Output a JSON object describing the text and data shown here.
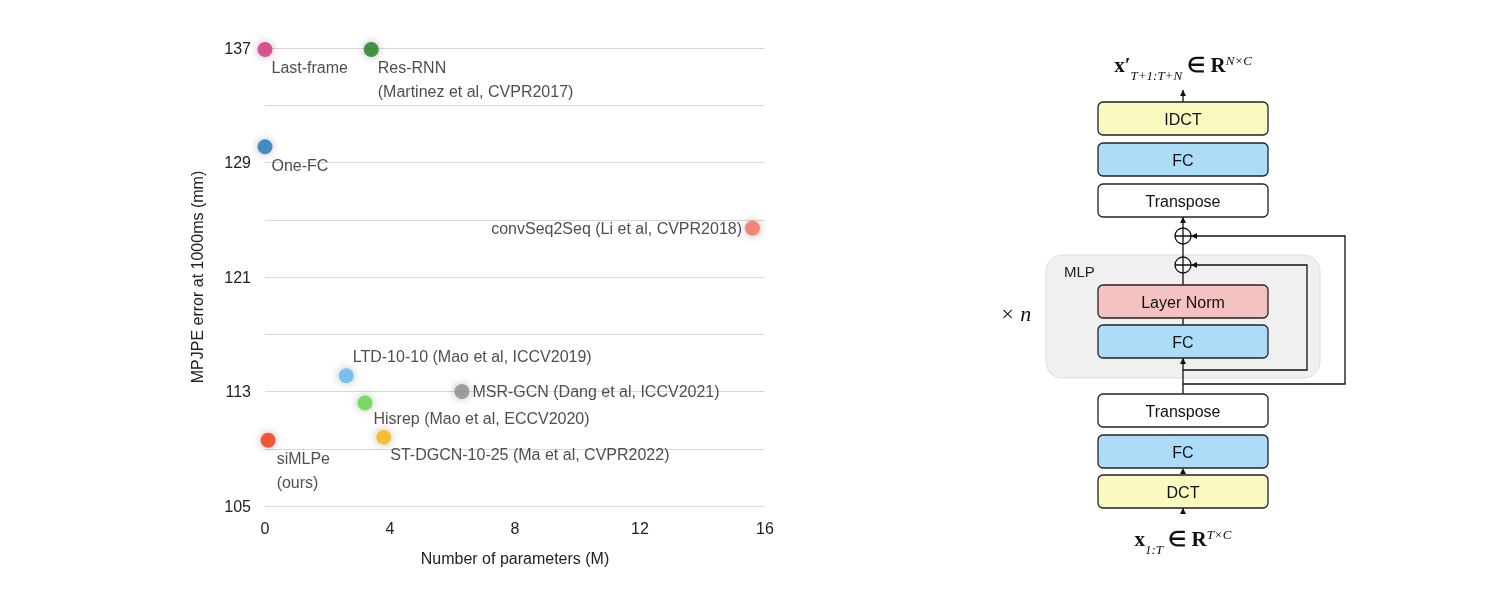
{
  "chart_data": [
    {
      "type": "scatter",
      "xlabel": "Number of parameters (M)",
      "ylabel": "MPJPE error at 1000ms (mm)",
      "xlim": [
        0,
        16
      ],
      "xticks": [
        0,
        4,
        8,
        12,
        16
      ],
      "ylim": [
        105,
        137
      ],
      "yticks": [
        105,
        {
          "value": 109,
          "label": null
        },
        113,
        {
          "value": 117,
          "label": null
        },
        121,
        {
          "value": 125,
          "label": null
        },
        129,
        {
          "value": 133,
          "label": null
        },
        137
      ],
      "grid": "y",
      "legend": false,
      "marker": "circle",
      "series": [
        {
          "name": "Last-frame",
          "color": "#d62f84",
          "x": [
            0
          ],
          "values": [
            136.9
          ]
        },
        {
          "name": "Res-RNN\n(Martinez et al, CVPR2017)",
          "color": "#1e7d1e",
          "x": [
            3.4
          ],
          "values": [
            136.9
          ]
        },
        {
          "name": "One-FC",
          "color": "#1f78b8",
          "x": [
            0
          ],
          "values": [
            130.1
          ]
        },
        {
          "name": "convSeq2Seq (Li et al, CVPR2018)",
          "color": "#f4705c",
          "x": [
            15.6
          ],
          "values": [
            124.4
          ]
        },
        {
          "name": "LTD-10-10 (Mao et al, ICCV2019)",
          "color": "#5cb8f2",
          "x": [
            2.6
          ],
          "values": [
            114.1
          ]
        },
        {
          "name": "MSR-GCN (Dang et al, ICCV2021)",
          "color": "#8c8c8c",
          "x": [
            6.3
          ],
          "values": [
            113.0
          ]
        },
        {
          "name": "Hisrep (Mao et al, ECCV2020)",
          "color": "#5fd64a",
          "x": [
            3.2
          ],
          "values": [
            112.2
          ]
        },
        {
          "name": "ST-DGCN-10-25 (Ma et al, CVPR2022)",
          "color": "#f6b80a",
          "x": [
            3.8
          ],
          "values": [
            109.8
          ]
        },
        {
          "name": "siMLPe\n(ours)",
          "color": "#f2320f",
          "x": [
            0.1
          ],
          "values": [
            109.6
          ]
        }
      ]
    },
    {
      "type": "other",
      "annotations": [
        "x′$_{T+1:T+N}$ ∈ R$^{N×C}$",
        "IDCT",
        "FC",
        "Transpose",
        "MLP",
        "Layer Norm",
        "FC",
        "× n",
        "Transpose",
        "FC",
        "DCT",
        "x$_{1:T}$ ∈ R$^{T×C}$"
      ]
    }
  ]
}
